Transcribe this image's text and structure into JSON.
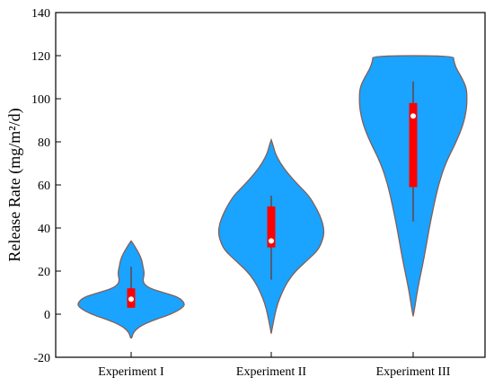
{
  "chart_data": {
    "type": "violin",
    "ylabel": "Release Rate (mg/m²/d)",
    "ylim": [
      -20,
      140
    ],
    "yticks": [
      -20,
      0,
      20,
      40,
      60,
      80,
      100,
      120,
      140
    ],
    "grid": false,
    "categories": [
      "Experiment I",
      "Experiment II",
      "Experiment III"
    ],
    "series": [
      {
        "category": "Experiment I",
        "min": -11,
        "max": 34,
        "q1": 3,
        "median": 7,
        "q3": 12,
        "whisker_low": 3,
        "whisker_high": 22,
        "density": [
          [
            -11,
            0.01
          ],
          [
            -8,
            0.05
          ],
          [
            -5,
            0.2
          ],
          [
            -2,
            0.5
          ],
          [
            0,
            0.75
          ],
          [
            3,
            0.96
          ],
          [
            5,
            1.0
          ],
          [
            8,
            0.88
          ],
          [
            10,
            0.6
          ],
          [
            12,
            0.35
          ],
          [
            14,
            0.24
          ],
          [
            16,
            0.22
          ],
          [
            18,
            0.24
          ],
          [
            20,
            0.24
          ],
          [
            22,
            0.22
          ],
          [
            25,
            0.2
          ],
          [
            28,
            0.15
          ],
          [
            31,
            0.08
          ],
          [
            33,
            0.03
          ],
          [
            34,
            0.0
          ]
        ]
      },
      {
        "category": "Experiment II",
        "min": -9,
        "max": 81,
        "q1": 31,
        "median": 34,
        "q3": 50,
        "whisker_low": 16,
        "whisker_high": 55,
        "density": [
          [
            -9,
            0.0
          ],
          [
            -5,
            0.03
          ],
          [
            0,
            0.07
          ],
          [
            5,
            0.12
          ],
          [
            10,
            0.2
          ],
          [
            15,
            0.3
          ],
          [
            20,
            0.45
          ],
          [
            25,
            0.67
          ],
          [
            30,
            0.88
          ],
          [
            35,
            0.96
          ],
          [
            38,
            0.98
          ],
          [
            42,
            0.96
          ],
          [
            46,
            0.9
          ],
          [
            50,
            0.82
          ],
          [
            55,
            0.7
          ],
          [
            60,
            0.5
          ],
          [
            65,
            0.32
          ],
          [
            70,
            0.17
          ],
          [
            75,
            0.07
          ],
          [
            78,
            0.04
          ],
          [
            81,
            0.0
          ]
        ]
      },
      {
        "category": "Experiment III",
        "min": -1,
        "max": 120,
        "q1": 59,
        "median": 92,
        "q3": 98,
        "whisker_low": 43,
        "whisker_high": 108,
        "density": [
          [
            -1,
            0.0
          ],
          [
            3,
            0.03
          ],
          [
            8,
            0.06
          ],
          [
            15,
            0.11
          ],
          [
            22,
            0.17
          ],
          [
            30,
            0.23
          ],
          [
            40,
            0.3
          ],
          [
            50,
            0.38
          ],
          [
            60,
            0.47
          ],
          [
            70,
            0.6
          ],
          [
            80,
            0.8
          ],
          [
            88,
            0.93
          ],
          [
            95,
            0.99
          ],
          [
            100,
            1.0
          ],
          [
            105,
            0.99
          ],
          [
            110,
            0.9
          ],
          [
            114,
            0.8
          ],
          [
            118,
            0.75
          ],
          [
            120,
            0.75
          ]
        ]
      }
    ]
  },
  "colors": {
    "violin_fill": "#1aa3ff",
    "violin_edge": "#8a5a4a",
    "box_fill": "#ff0000",
    "whisker": "#6b3d3d",
    "median_dot": "#ffffff",
    "axis": "#000000"
  }
}
